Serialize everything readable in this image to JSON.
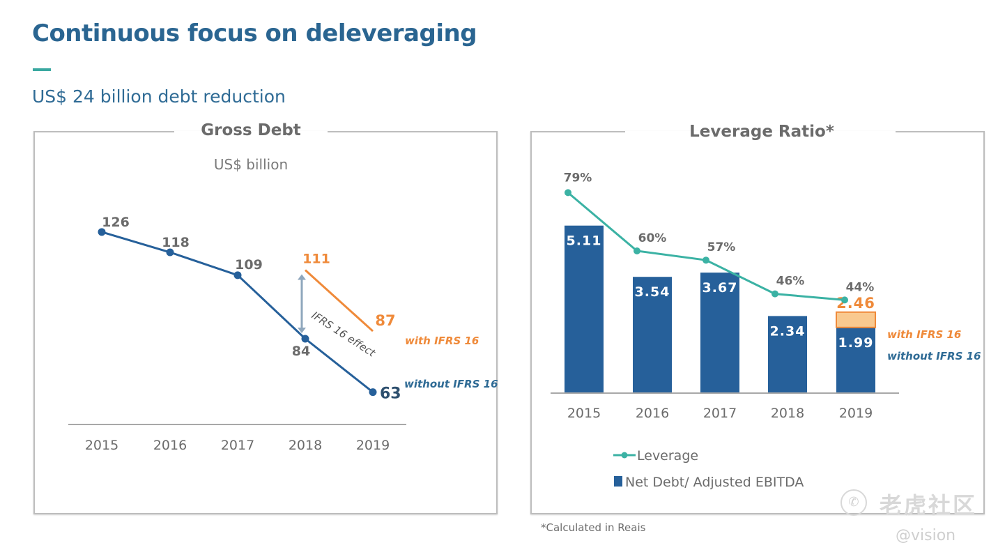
{
  "header": {
    "title": "Continuous focus on deleveraging",
    "subtitle": "US$ 24 billion debt reduction",
    "accent_color": "#3aa8a0",
    "title_color": "#2a6591"
  },
  "footnote": "*Calculated in Reais",
  "watermark": {
    "icon": "tiger-logo-icon",
    "text": "老虎社区",
    "handle": "@vision"
  },
  "colors": {
    "navy": "#26609a",
    "orange": "#ef8a3a",
    "orange_fill": "#f9c98f",
    "teal": "#3bb2a4",
    "gray_text": "#6b6b6b",
    "axis": "#a8a8a8"
  },
  "chart_data": [
    {
      "type": "line",
      "title": "Gross Debt",
      "subtitle": "US$ billion",
      "categories": [
        "2015",
        "2016",
        "2017",
        "2018",
        "2019"
      ],
      "series": [
        {
          "name": "without IFRS 16",
          "values": [
            126,
            118,
            109,
            84,
            63
          ],
          "labels": [
            "126",
            "118",
            "109",
            "84",
            "63"
          ]
        },
        {
          "name": "with IFRS 16",
          "x": [
            "2018",
            "2019"
          ],
          "values": [
            111,
            87
          ],
          "labels": [
            "111",
            "87"
          ]
        }
      ],
      "annotation": "IFRS 16 effect",
      "series_labels": {
        "with": "with IFRS 16",
        "without": "without IFRS 16"
      },
      "ylim": [
        50,
        135
      ],
      "grid": false
    },
    {
      "type": "bar",
      "title": "Leverage Ratio*",
      "categories": [
        "2015",
        "2016",
        "2017",
        "2018",
        "2019"
      ],
      "series": [
        {
          "name": "Net Debt/ Adjusted EBITDA",
          "values": [
            5.11,
            3.54,
            3.67,
            2.34,
            1.99
          ],
          "labels": [
            "5.11",
            "3.54",
            "3.67",
            "2.34",
            "1.99"
          ]
        },
        {
          "name": "Leverage",
          "type": "line",
          "values": [
            79,
            60,
            57,
            46,
            44
          ],
          "labels": [
            "79%",
            "60%",
            "57%",
            "46%",
            "44%"
          ]
        }
      ],
      "ifrs16_2019": {
        "value": 2.46,
        "label": "2.46",
        "with_label": "with IFRS 16",
        "without_label": "without IFRS 16"
      },
      "legend": [
        "Leverage",
        "Net Debt/ Adjusted EBITDA"
      ],
      "legend_position": "bottom-left",
      "bar_ylim": [
        0,
        6
      ],
      "line_ylim": [
        35,
        85
      ],
      "grid": false
    }
  ]
}
